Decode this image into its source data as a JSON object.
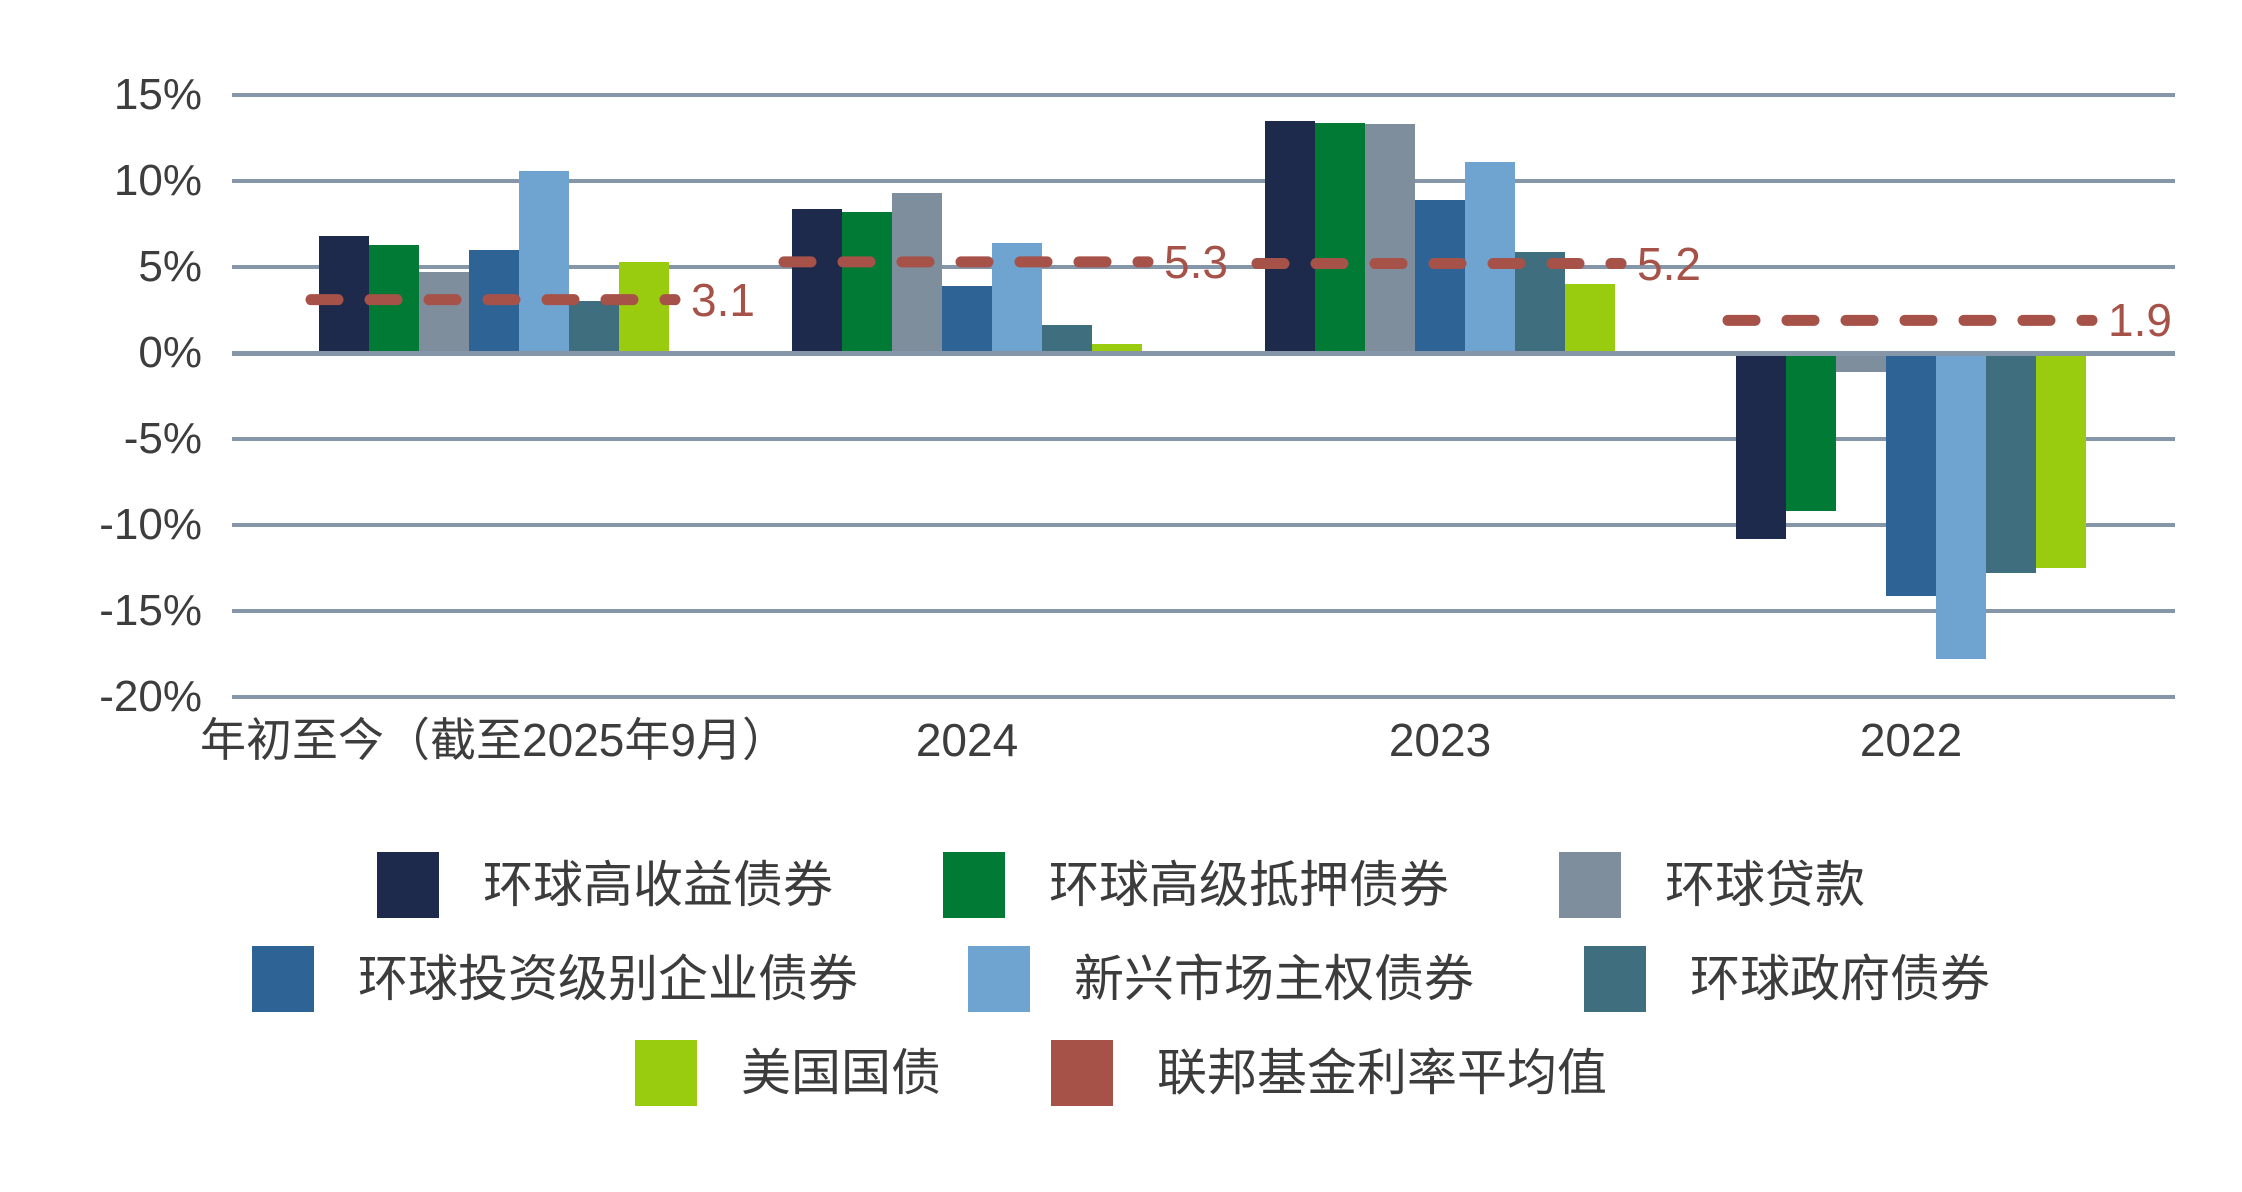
{
  "chart_data": {
    "type": "bar",
    "title": "",
    "categories": [
      "年初至今（截至2025年9月）",
      "2024",
      "2023",
      "2022"
    ],
    "series": [
      {
        "name": "环球高收益债券",
        "color": "#1d2a4c",
        "values": [
          6.8,
          8.4,
          13.5,
          -10.8
        ]
      },
      {
        "name": "环球高级抵押债券",
        "color": "#007a35",
        "values": [
          6.3,
          8.2,
          13.4,
          -9.2
        ]
      },
      {
        "name": "环球贷款",
        "color": "#7e8e9d",
        "values": [
          4.7,
          9.3,
          13.3,
          -1.1
        ]
      },
      {
        "name": "环球投资级别企业债券",
        "color": "#2d6495",
        "values": [
          6.0,
          3.9,
          8.9,
          -14.1
        ]
      },
      {
        "name": "新兴市场主权债券",
        "color": "#6fa4d1",
        "values": [
          10.6,
          6.4,
          11.1,
          -17.8
        ]
      },
      {
        "name": "环球政府债券",
        "color": "#3f6e7e",
        "values": [
          3.0,
          1.6,
          5.9,
          -12.8
        ]
      },
      {
        "name": "美国国债",
        "color": "#99cb0e",
        "values": [
          5.3,
          0.5,
          4.0,
          -12.5
        ]
      }
    ],
    "reference_line": {
      "name": "联邦基金利率平均值",
      "color": "#a75248",
      "style": "dashed",
      "values": [
        3.1,
        5.3,
        5.2,
        1.9
      ],
      "labels": [
        "3.1",
        "5.3",
        "5.2",
        "1.9"
      ]
    },
    "y_axis": {
      "min": -20,
      "max": 15,
      "step": 5,
      "ticks": [
        15,
        10,
        5,
        0,
        -5,
        -10,
        -15,
        -20
      ],
      "tick_labels": [
        "15%",
        "10%",
        "5%",
        "0%",
        "-5%",
        "-10%",
        "-15%",
        "-20%"
      ]
    },
    "xlabel": "",
    "ylabel": "",
    "grid": true,
    "legend_position": "bottom",
    "legend_rows": [
      [
        "环球高收益债券",
        "环球高级抵押债券",
        "环球贷款"
      ],
      [
        "环球投资级别企业债券",
        "新兴市场主权债券",
        "环球政府债券"
      ],
      [
        "美国国债",
        "联邦基金利率平均值"
      ]
    ]
  },
  "colors": {
    "gridline": "#8496a7",
    "axis_text": "#3d3d3d",
    "background": "#ffffff"
  }
}
